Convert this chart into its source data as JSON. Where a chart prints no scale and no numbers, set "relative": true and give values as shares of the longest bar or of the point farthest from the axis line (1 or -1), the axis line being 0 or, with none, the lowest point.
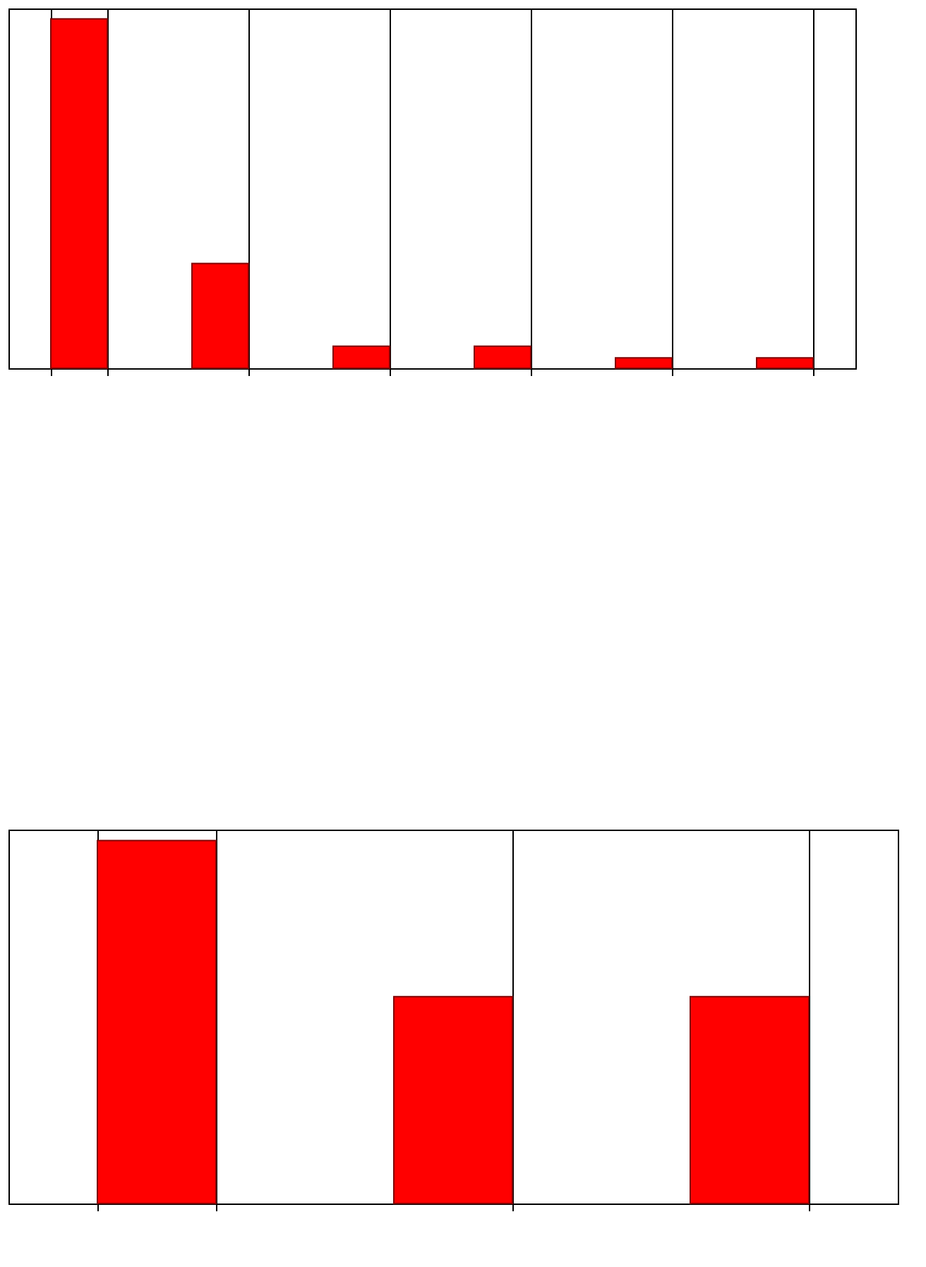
{
  "chart_data": [
    {
      "type": "bar",
      "categories": [
        null,
        null,
        null,
        null,
        null,
        null
      ],
      "relative": true,
      "tick_labels": false,
      "grid": "x",
      "series": [
        {
          "color": "#ff0000",
          "values": [
            1,
            0.3,
            0.063,
            0.063,
            0.03,
            0.03
          ]
        }
      ]
    },
    {
      "type": "bar",
      "categories": [
        null,
        null,
        null
      ],
      "relative": true,
      "tick_labels": false,
      "grid": "x",
      "series": [
        {
          "color": "#ff0000",
          "values": [
            1,
            0.57,
            0.57
          ]
        }
      ]
    }
  ]
}
